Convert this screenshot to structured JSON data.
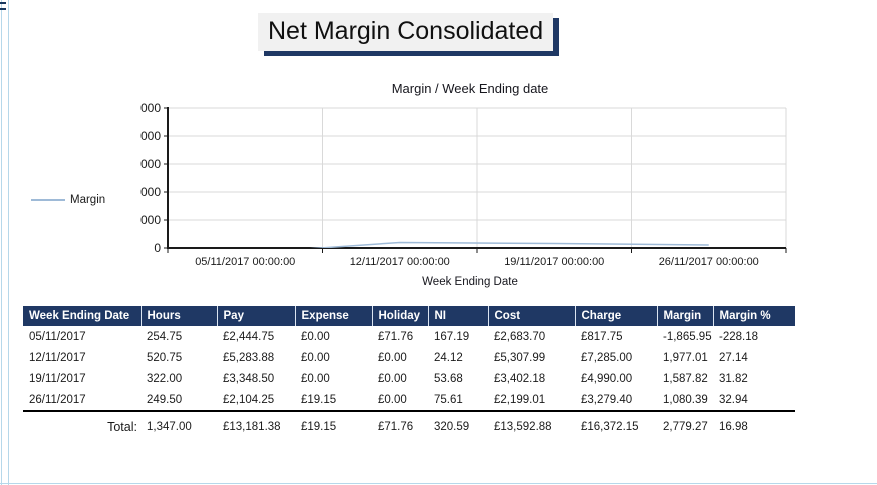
{
  "page": {
    "title": "Net Margin Consolidated",
    "colors": {
      "accent_navy": "#1f3864",
      "series_line_blue": "#9ebad7",
      "gridline_gray": "#d9d9d9",
      "panel_edge_blue": "#b6d8ea",
      "title_bg_gray": "#f1f1f1"
    }
  },
  "chart_data": {
    "type": "line",
    "title": "Margin / Week Ending date",
    "xlabel": "Week Ending Date",
    "ylabel": "",
    "categories": [
      "05/11/2017 00:00:00",
      "12/11/2017 00:00:00",
      "19/11/2017 00:00:00",
      "26/11/2017 00:00:00"
    ],
    "series": [
      {
        "name": "Margin",
        "color": "#9ebad7",
        "values": [
          -1865.95,
          1977.01,
          1587.82,
          1080.39
        ]
      }
    ],
    "ylim": [
      0,
      50000
    ],
    "ytick_step": 10000,
    "grid": true,
    "legend_position": "left"
  },
  "table": {
    "headers": [
      "Week Ending Date",
      "Hours",
      "Pay",
      "Expense",
      "Holiday",
      "NI",
      "Cost",
      "Charge",
      "Margin",
      "Margin %"
    ],
    "rows": [
      [
        "05/11/2017",
        "254.75",
        "£2,444.75",
        "£0.00",
        "£71.76",
        "167.19",
        "£2,683.70",
        "£817.75",
        "-1,865.95",
        "-228.18"
      ],
      [
        "12/11/2017",
        "520.75",
        "£5,283.88",
        "£0.00",
        "£0.00",
        "24.12",
        "£5,307.99",
        "£7,285.00",
        "1,977.01",
        "27.14"
      ],
      [
        "19/11/2017",
        "322.00",
        "£3,348.50",
        "£0.00",
        "£0.00",
        "53.68",
        "£3,402.18",
        "£4,990.00",
        "1,587.82",
        "31.82"
      ],
      [
        "26/11/2017",
        "249.50",
        "£2,104.25",
        "£19.15",
        "£0.00",
        "75.61",
        "£2,199.01",
        "£3,279.40",
        "1,080.39",
        "32.94"
      ]
    ],
    "total_label": "Total:",
    "total_row": [
      "1,347.00",
      "£13,181.38",
      "£19.15",
      "£71.76",
      "320.59",
      "£13,592.88",
      "£16,372.15",
      "2,779.27",
      "16.98"
    ]
  }
}
